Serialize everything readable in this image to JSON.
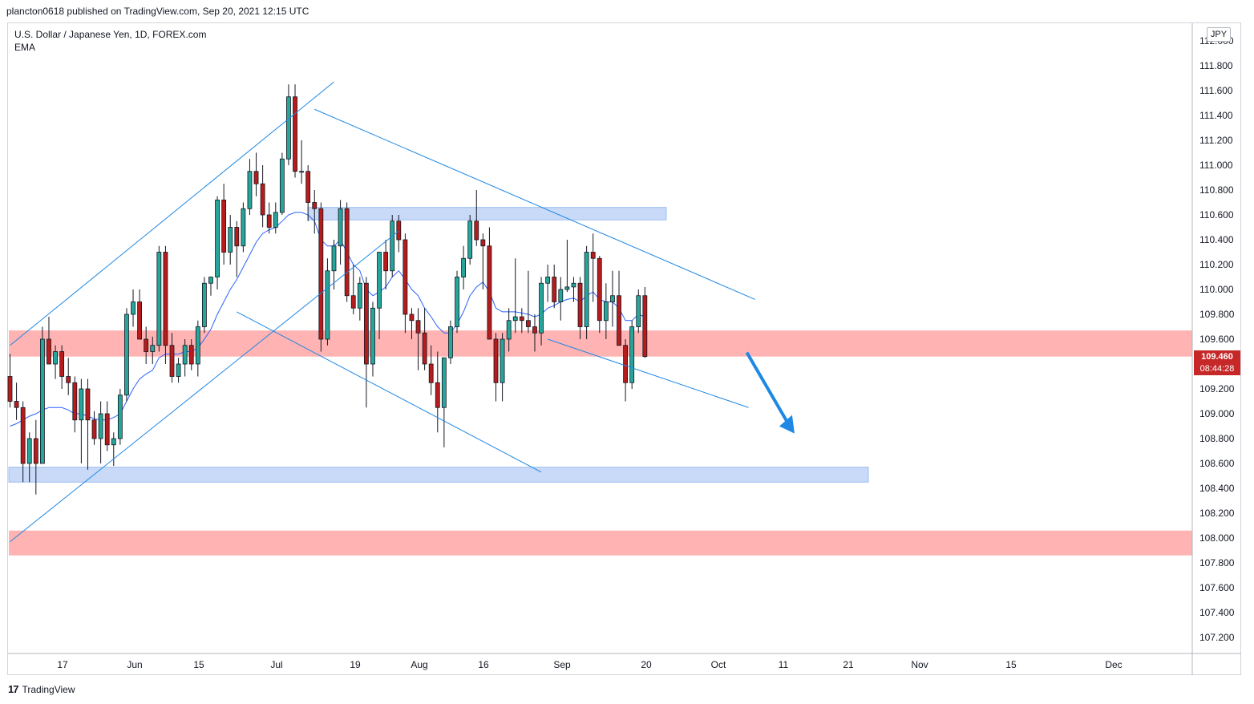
{
  "header": {
    "published_line": "plancton0618 published on TradingView.com, Sep 20, 2021 12:15 UTC"
  },
  "symbol": {
    "title": "U.S. Dollar / Japanese Yen, 1D, FOREX.com",
    "indicator": "EMA"
  },
  "currency_badge": "JPY",
  "last_price": {
    "price": "109.460",
    "countdown": "08:44:28"
  },
  "footer": {
    "brand": "TradingView"
  },
  "colors": {
    "bull": "#26a69a",
    "bear": "#b71c1c",
    "wick": "#131722",
    "ema": "#2962ff",
    "trendline": "#1e88e5",
    "resistance_zone": "#ffb3b3",
    "support_zone": "#c8daf7",
    "arrow": "#1e88e5"
  },
  "chart_data": {
    "type": "candlestick",
    "y_axis": {
      "ylim": [
        107.05,
        112.2
      ],
      "tick_labels": [
        "112.000",
        "111.800",
        "111.600",
        "111.400",
        "111.200",
        "111.000",
        "110.800",
        "110.600",
        "110.400",
        "110.200",
        "110.000",
        "109.800",
        "109.600",
        "109.400",
        "109.200",
        "109.000",
        "108.800",
        "108.600",
        "108.400",
        "108.200",
        "108.000",
        "107.800",
        "107.600",
        "107.400",
        "107.200"
      ]
    },
    "x_axis": {
      "tick_labels": [
        "17",
        "Jun",
        "15",
        "Jul",
        "19",
        "Aug",
        "16",
        "Sep",
        "20",
        "Oct",
        "11",
        "21",
        "Nov",
        "15",
        "Dec"
      ]
    },
    "candles_ohlc": [
      [
        109.3,
        109.48,
        109.05,
        109.1
      ],
      [
        109.1,
        109.25,
        108.95,
        109.05
      ],
      [
        109.05,
        109.1,
        108.45,
        108.6
      ],
      [
        108.6,
        108.85,
        108.45,
        108.8
      ],
      [
        108.8,
        108.95,
        108.35,
        108.6
      ],
      [
        108.6,
        109.7,
        108.6,
        109.6
      ],
      [
        109.6,
        109.78,
        109.5,
        109.4
      ],
      [
        109.4,
        109.55,
        109.28,
        109.5
      ],
      [
        109.5,
        109.55,
        109.2,
        109.3
      ],
      [
        109.3,
        109.45,
        109.15,
        109.25
      ],
      [
        109.25,
        109.3,
        108.85,
        108.95
      ],
      [
        108.95,
        109.28,
        108.6,
        109.2
      ],
      [
        109.2,
        109.28,
        108.55,
        108.95
      ],
      [
        108.95,
        109.02,
        108.75,
        108.8
      ],
      [
        108.8,
        109.1,
        108.6,
        109.0
      ],
      [
        109.0,
        109.1,
        108.7,
        108.75
      ],
      [
        108.75,
        108.85,
        108.58,
        108.8
      ],
      [
        108.8,
        109.2,
        108.75,
        109.15
      ],
      [
        109.15,
        109.85,
        109.1,
        109.8
      ],
      [
        109.8,
        110.0,
        109.7,
        109.9
      ],
      [
        109.9,
        110.0,
        109.6,
        109.6
      ],
      [
        109.6,
        109.7,
        109.4,
        109.5
      ],
      [
        109.5,
        109.62,
        109.4,
        109.55
      ],
      [
        109.55,
        110.35,
        109.5,
        110.3
      ],
      [
        110.3,
        110.35,
        109.4,
        109.55
      ],
      [
        109.55,
        109.65,
        109.25,
        109.3
      ],
      [
        109.3,
        109.45,
        109.25,
        109.4
      ],
      [
        109.4,
        109.6,
        109.3,
        109.55
      ],
      [
        109.55,
        109.6,
        109.35,
        109.4
      ],
      [
        109.4,
        109.75,
        109.3,
        109.7
      ],
      [
        109.7,
        110.1,
        109.65,
        110.05
      ],
      [
        110.05,
        110.1,
        109.95,
        110.1
      ],
      [
        110.1,
        110.75,
        110.0,
        110.72
      ],
      [
        110.72,
        110.85,
        110.2,
        110.3
      ],
      [
        110.3,
        110.6,
        110.2,
        110.5
      ],
      [
        110.5,
        110.55,
        110.1,
        110.35
      ],
      [
        110.35,
        110.7,
        110.3,
        110.65
      ],
      [
        110.65,
        111.05,
        110.6,
        110.95
      ],
      [
        110.95,
        111.1,
        110.75,
        110.85
      ],
      [
        110.85,
        111.0,
        110.5,
        110.6
      ],
      [
        110.6,
        110.7,
        110.45,
        110.5
      ],
      [
        110.5,
        110.7,
        110.45,
        110.62
      ],
      [
        110.62,
        111.1,
        110.6,
        111.05
      ],
      [
        111.05,
        111.65,
        111.0,
        111.55
      ],
      [
        111.55,
        111.65,
        110.9,
        110.95
      ],
      [
        110.95,
        111.2,
        110.85,
        110.95
      ],
      [
        110.95,
        111.0,
        110.55,
        110.7
      ],
      [
        110.7,
        110.8,
        110.45,
        110.65
      ],
      [
        110.65,
        110.7,
        109.5,
        109.6
      ],
      [
        109.6,
        110.25,
        109.55,
        110.15
      ],
      [
        110.15,
        110.4,
        110.0,
        110.35
      ],
      [
        110.35,
        110.72,
        110.2,
        110.65
      ],
      [
        110.65,
        110.7,
        109.9,
        109.95
      ],
      [
        109.95,
        110.2,
        109.8,
        109.85
      ],
      [
        109.85,
        110.1,
        109.75,
        110.05
      ],
      [
        110.05,
        110.1,
        109.05,
        109.4
      ],
      [
        109.4,
        109.9,
        109.3,
        109.85
      ],
      [
        109.85,
        110.3,
        109.6,
        110.3
      ],
      [
        110.3,
        110.4,
        110.0,
        110.15
      ],
      [
        110.15,
        110.6,
        110.1,
        110.55
      ],
      [
        110.55,
        110.6,
        110.3,
        110.4
      ],
      [
        110.4,
        110.45,
        109.65,
        109.8
      ],
      [
        109.8,
        109.85,
        109.6,
        109.75
      ],
      [
        109.75,
        109.85,
        109.35,
        109.65
      ],
      [
        109.65,
        109.85,
        109.35,
        109.4
      ],
      [
        109.4,
        109.55,
        109.15,
        109.25
      ],
      [
        109.25,
        109.5,
        108.85,
        109.05
      ],
      [
        109.05,
        109.45,
        108.73,
        109.45
      ],
      [
        109.45,
        109.75,
        109.4,
        109.7
      ],
      [
        109.7,
        110.15,
        109.65,
        110.1
      ],
      [
        110.1,
        110.35,
        110.0,
        110.25
      ],
      [
        110.25,
        110.6,
        110.2,
        110.55
      ],
      [
        110.55,
        110.8,
        110.35,
        110.4
      ],
      [
        110.4,
        110.45,
        110.0,
        110.35
      ],
      [
        110.35,
        110.5,
        109.6,
        109.6
      ],
      [
        109.6,
        109.65,
        109.1,
        109.25
      ],
      [
        109.25,
        109.65,
        109.1,
        109.6
      ],
      [
        109.6,
        109.85,
        109.5,
        109.75
      ],
      [
        109.75,
        110.25,
        109.65,
        109.78
      ],
      [
        109.78,
        109.85,
        109.65,
        109.75
      ],
      [
        109.75,
        110.15,
        109.65,
        109.7
      ],
      [
        109.7,
        109.8,
        109.5,
        109.65
      ],
      [
        109.65,
        110.1,
        109.55,
        110.05
      ],
      [
        110.05,
        110.2,
        109.9,
        110.1
      ],
      [
        110.1,
        110.2,
        109.85,
        109.9
      ],
      [
        109.9,
        110.1,
        109.75,
        110.0
      ],
      [
        110.0,
        110.4,
        109.98,
        110.02
      ],
      [
        110.02,
        110.1,
        109.9,
        110.05
      ],
      [
        110.05,
        110.1,
        109.6,
        109.7
      ],
      [
        109.7,
        110.35,
        109.6,
        110.3
      ],
      [
        110.3,
        110.45,
        109.9,
        110.25
      ],
      [
        110.25,
        110.27,
        109.65,
        109.75
      ],
      [
        109.75,
        110.05,
        109.6,
        109.9
      ],
      [
        109.9,
        110.15,
        109.7,
        109.95
      ],
      [
        109.95,
        110.15,
        109.55,
        109.55
      ],
      [
        109.55,
        109.6,
        109.1,
        109.25
      ],
      [
        109.25,
        109.75,
        109.2,
        109.7
      ],
      [
        109.7,
        110.0,
        109.65,
        109.95
      ],
      [
        109.95,
        110.02,
        109.45,
        109.46
      ]
    ],
    "ema": {
      "name": "EMA",
      "values": [
        108.9,
        108.92,
        108.95,
        108.98,
        109.0,
        109.03,
        109.05,
        109.05,
        109.05,
        109.03,
        109.0,
        109.0,
        108.98,
        108.96,
        108.95,
        108.95,
        108.97,
        109.0,
        109.1,
        109.2,
        109.28,
        109.32,
        109.35,
        109.45,
        109.48,
        109.48,
        109.48,
        109.5,
        109.5,
        109.53,
        109.6,
        109.68,
        109.8,
        109.9,
        110.0,
        110.08,
        110.18,
        110.28,
        110.38,
        110.45,
        110.48,
        110.5,
        110.55,
        110.6,
        110.62,
        110.62,
        110.6,
        110.55,
        110.4,
        110.35,
        110.35,
        110.4,
        110.3,
        110.2,
        110.15,
        110.0,
        109.95,
        109.98,
        110.02,
        110.1,
        110.15,
        110.08,
        110.0,
        109.95,
        109.85,
        109.78,
        109.7,
        109.65,
        109.65,
        109.72,
        109.82,
        109.95,
        110.02,
        110.06,
        109.98,
        109.85,
        109.82,
        109.82,
        109.82,
        109.81,
        109.8,
        109.78,
        109.8,
        109.85,
        109.87,
        109.9,
        109.92,
        109.93,
        109.9,
        109.95,
        109.98,
        109.92,
        109.9,
        109.9,
        109.85,
        109.75,
        109.75,
        109.8,
        109.78
      ]
    },
    "zones": [
      {
        "type": "resistance",
        "y": [
          109.46,
          109.67
        ]
      },
      {
        "type": "resistance",
        "y": [
          107.86,
          108.06
        ]
      },
      {
        "type": "support",
        "y": [
          110.56,
          110.66
        ]
      },
      {
        "type": "support",
        "y": [
          108.45,
          108.57
        ]
      }
    ],
    "trend_lines": [
      {
        "from": [
          0,
          109.55
        ],
        "to": [
          50,
          111.67
        ]
      },
      {
        "from": [
          0,
          107.97
        ],
        "to": [
          60,
          110.47
        ]
      },
      {
        "from": [
          47,
          111.45
        ],
        "to": [
          115,
          109.92
        ]
      },
      {
        "from": [
          35,
          109.82
        ],
        "to": [
          82,
          108.53
        ]
      },
      {
        "from": [
          83,
          109.6
        ],
        "to": [
          114,
          109.05
        ]
      }
    ],
    "arrow": {
      "from": [
        112,
        109.48
      ],
      "to": [
        118,
        108.88
      ]
    }
  }
}
